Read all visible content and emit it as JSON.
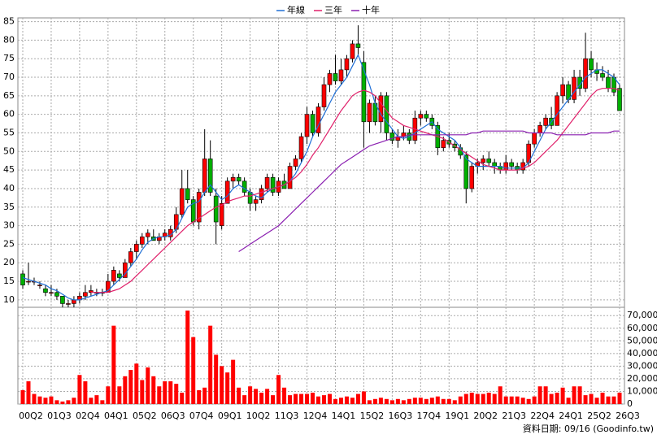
{
  "chart_data": {
    "type": "candlestick",
    "legend": {
      "position": "top"
    },
    "grid": true,
    "categories": [
      "00Q2",
      null,
      null,
      null,
      null,
      "01Q3",
      null,
      null,
      null,
      null,
      "02Q4",
      null,
      null,
      null,
      null,
      "04Q1",
      null,
      null,
      null,
      null,
      "05Q2",
      null,
      null,
      null,
      null,
      "06Q3",
      null,
      null,
      null,
      null,
      "07Q4",
      null,
      null,
      null,
      null,
      "09Q1",
      null,
      null,
      null,
      null,
      "10Q2",
      null,
      null,
      null,
      null,
      "11Q3",
      null,
      null,
      null,
      null,
      "12Q4",
      null,
      null,
      null,
      null,
      "14Q1",
      null,
      null,
      null,
      null,
      "15Q2",
      null,
      null,
      null,
      null,
      "16Q3",
      null,
      null,
      null,
      null,
      "17Q4",
      null,
      null,
      null,
      null,
      "19Q1",
      null,
      null,
      null,
      null,
      "20Q2",
      null,
      null,
      null,
      null,
      "21Q3",
      null,
      null,
      null,
      null,
      "22Q4",
      null,
      null,
      null,
      null,
      "24Q1",
      null,
      null,
      null,
      null,
      "25Q2",
      null,
      null,
      null,
      null,
      "26Q3"
    ],
    "up_color": "#ff0000",
    "down_color": "#00b000",
    "ylim": [
      8,
      86
    ],
    "yticks": [
      10,
      15,
      20,
      25,
      30,
      35,
      40,
      45,
      50,
      55,
      60,
      65,
      70,
      75,
      80,
      85
    ],
    "open": [
      17,
      15,
      15,
      14,
      13,
      12,
      12,
      11,
      9,
      9,
      10,
      11,
      12,
      12,
      12,
      12,
      15,
      17,
      16,
      20,
      23,
      25,
      27,
      27,
      26,
      27,
      27,
      29,
      33,
      40,
      37,
      31,
      39,
      48,
      38,
      30,
      36,
      42,
      43,
      42,
      39,
      36,
      37,
      40,
      43,
      39,
      42,
      40,
      46,
      48,
      54,
      60,
      55,
      62,
      68,
      71,
      69,
      72,
      75,
      79,
      74,
      58,
      63,
      58,
      65,
      55,
      53,
      54,
      55,
      53,
      59,
      60,
      59,
      57,
      51,
      53,
      52,
      51,
      49,
      40,
      46,
      47,
      48,
      47,
      46,
      45,
      47,
      46,
      45,
      47,
      52,
      55,
      57,
      59,
      57,
      65,
      68,
      64,
      70,
      67,
      75,
      72,
      71,
      70,
      70,
      67
    ],
    "high": [
      18,
      20,
      16,
      15,
      14,
      14,
      13,
      11,
      10,
      11,
      12,
      14,
      14,
      13,
      13,
      17,
      19,
      18,
      21,
      24,
      26,
      28,
      29,
      29,
      28,
      29,
      30,
      35,
      45,
      45,
      38,
      40,
      56,
      53,
      40,
      38,
      43,
      44,
      44,
      43,
      40,
      38,
      41,
      44,
      44,
      43,
      44,
      47,
      49,
      55,
      62,
      61,
      63,
      70,
      72,
      76,
      75,
      76,
      80,
      84,
      77,
      64,
      65,
      66,
      66,
      56,
      56,
      57,
      56,
      61,
      61,
      61,
      60,
      58,
      54,
      55,
      53,
      52,
      50,
      47,
      48,
      49,
      50,
      48,
      47,
      49,
      48,
      47,
      48,
      53,
      56,
      58,
      60,
      62,
      66,
      70,
      69,
      72,
      72,
      82,
      77,
      74,
      73,
      72,
      71,
      68
    ],
    "low": [
      13,
      14,
      14,
      13,
      11,
      11,
      10,
      8,
      8,
      8,
      9,
      10,
      11,
      11,
      11,
      12,
      14,
      15,
      16,
      19,
      21,
      24,
      25,
      26,
      25,
      26,
      26,
      28,
      32,
      36,
      30,
      29,
      38,
      38,
      25,
      29,
      36,
      40,
      41,
      38,
      34,
      34,
      36,
      39,
      38,
      38,
      40,
      40,
      45,
      47,
      52,
      54,
      54,
      61,
      66,
      68,
      68,
      70,
      74,
      76,
      51,
      55,
      57,
      55,
      53,
      52,
      51,
      53,
      52,
      52,
      57,
      58,
      56,
      49,
      50,
      51,
      50,
      48,
      36,
      39,
      44,
      45,
      46,
      44,
      44,
      44,
      45,
      44,
      44,
      46,
      51,
      54,
      56,
      56,
      57,
      63,
      63,
      63,
      65,
      66,
      70,
      69,
      69,
      66,
      65,
      61
    ],
    "close": [
      14,
      15,
      15,
      14,
      12,
      12,
      11,
      9,
      9,
      10,
      11,
      12,
      12.5,
      12,
      12,
      15,
      18,
      16,
      20,
      23,
      25,
      27,
      28,
      26,
      27,
      28,
      29,
      33,
      40,
      37,
      31,
      39,
      48,
      39,
      31,
      36,
      42,
      43,
      42,
      39,
      36,
      37,
      40,
      43,
      39,
      42,
      40,
      46,
      48,
      54,
      60,
      55,
      62,
      68,
      71,
      69,
      72,
      75,
      79,
      78,
      58,
      63,
      58,
      65,
      55,
      53,
      54,
      55,
      53,
      59,
      60,
      59,
      57,
      51,
      53,
      52,
      51,
      49,
      40,
      46,
      47,
      48,
      47,
      46,
      45,
      47,
      46,
      45,
      47,
      52,
      55,
      57,
      59,
      57,
      65,
      68,
      64,
      70,
      67,
      75,
      72,
      71,
      70,
      67,
      66,
      61
    ],
    "series": [
      {
        "name": "年線",
        "color": "#1f6fd6",
        "values": [
          16,
          15.5,
          15,
          14.5,
          14,
          13,
          12.5,
          11.5,
          10.5,
          10,
          10,
          10.5,
          11,
          11.5,
          12,
          12.5,
          14,
          15.5,
          17,
          19,
          21,
          23.5,
          25.5,
          26.5,
          27,
          27,
          27.5,
          29,
          32,
          35,
          36,
          36.5,
          39,
          41,
          39,
          37,
          38,
          40,
          41,
          40,
          39,
          38,
          37.5,
          39,
          40,
          40.5,
          41,
          42,
          44,
          47,
          50,
          54,
          57,
          60,
          63,
          66,
          68,
          70,
          73,
          76,
          72,
          68,
          63,
          60,
          58,
          56,
          54,
          53.5,
          54,
          55,
          56,
          57,
          58,
          56,
          55,
          54,
          53,
          51,
          48,
          47,
          46,
          46,
          46,
          46,
          46,
          45.5,
          45.5,
          45.5,
          45.5,
          47,
          50,
          53,
          56,
          58,
          60,
          62,
          64,
          66,
          68,
          70,
          71,
          72,
          72,
          71,
          70,
          68
        ]
      },
      {
        "name": "三年",
        "color": "#e0206a",
        "values": [
          null,
          null,
          null,
          null,
          null,
          null,
          null,
          null,
          null,
          null,
          null,
          null,
          12,
          12,
          12,
          12,
          12.5,
          13,
          14,
          15,
          16.5,
          18,
          19.5,
          21,
          22.5,
          24,
          25.5,
          27,
          28.5,
          30,
          31,
          32,
          33,
          34,
          35,
          35.5,
          36.5,
          37,
          37.5,
          38,
          38,
          38.5,
          39,
          39.5,
          40,
          40.5,
          41,
          42,
          43,
          44.5,
          46.5,
          49,
          51,
          53.5,
          56,
          58.5,
          61,
          63,
          65,
          66,
          66.5,
          66,
          65,
          63,
          61,
          59,
          58,
          57,
          56.5,
          56,
          55.5,
          55,
          54.5,
          54,
          53.5,
          52.5,
          51.5,
          50.5,
          49.5,
          48.5,
          47.5,
          46.5,
          46,
          45.5,
          45,
          45,
          45,
          45,
          45.5,
          46,
          47,
          48.5,
          50,
          51.5,
          53,
          55,
          57,
          59,
          61,
          63,
          65,
          66.5,
          67,
          67,
          67,
          66.5
        ]
      },
      {
        "name": "十年",
        "color": "#8a1fb0",
        "values": [
          null,
          null,
          null,
          null,
          null,
          null,
          null,
          null,
          null,
          null,
          null,
          null,
          null,
          null,
          null,
          null,
          null,
          null,
          null,
          null,
          null,
          null,
          null,
          null,
          null,
          null,
          null,
          null,
          null,
          null,
          null,
          null,
          null,
          null,
          null,
          null,
          null,
          null,
          23,
          24,
          25,
          26,
          27,
          28,
          29,
          30,
          31.5,
          33,
          34.5,
          36,
          37.5,
          39,
          40.5,
          42,
          43.5,
          45,
          46.5,
          47.5,
          48.5,
          49.5,
          50.5,
          51.5,
          52,
          52.5,
          53,
          53.5,
          54,
          54,
          54.5,
          54.5,
          54.5,
          54.5,
          54.5,
          54.5,
          54.5,
          54.5,
          54.5,
          54.5,
          54.5,
          55,
          55,
          55.5,
          55.5,
          55.5,
          55.5,
          55.5,
          55.5,
          55.5,
          55.5,
          55,
          55,
          55,
          55,
          55,
          54.5,
          54.5,
          54.5,
          54.5,
          54.5,
          54.5,
          55,
          55,
          55,
          55,
          55.5,
          55.5
        ]
      }
    ],
    "volume": {
      "color": "#ff0000",
      "ylim": [
        0,
        74000
      ],
      "yticks": [
        0,
        {
          "value": 10000,
          "label": "10,000"
        },
        {
          "value": 20000,
          "label": "20,000"
        },
        {
          "value": 30000,
          "label": "30,000"
        },
        {
          "value": 40000,
          "label": "40,000"
        },
        {
          "value": 50000,
          "label": "50,000"
        },
        {
          "value": 60000,
          "label": "60,000"
        },
        {
          "value": 70000,
          "label": "70,000"
        }
      ],
      "values": [
        11000,
        18000,
        8000,
        6000,
        5000,
        6000,
        3000,
        2000,
        3000,
        5000,
        23000,
        18000,
        5000,
        7000,
        3000,
        14000,
        62000,
        14000,
        22000,
        27000,
        32000,
        19000,
        29000,
        22000,
        14000,
        18000,
        18000,
        16000,
        9000,
        74000,
        53000,
        11000,
        13000,
        62000,
        39000,
        30000,
        25000,
        35000,
        13000,
        7000,
        14000,
        12000,
        9000,
        12000,
        7000,
        23000,
        13000,
        7000,
        8000,
        8000,
        8000,
        9000,
        6000,
        7000,
        8000,
        4000,
        5000,
        6000,
        5000,
        8000,
        10000,
        3000,
        4000,
        5000,
        4000,
        3000,
        4000,
        3000,
        4000,
        5000,
        5000,
        4000,
        5000,
        6000,
        4000,
        4000,
        3000,
        6000,
        8000,
        9000,
        8000,
        8000,
        9000,
        8000,
        14000,
        6000,
        6000,
        6000,
        5000,
        4000,
        6000,
        14000,
        14000,
        8000,
        9000,
        13000,
        5000,
        14000,
        14000,
        7000,
        8000,
        5000,
        9000,
        6000,
        6000,
        9000
      ]
    },
    "footnote": "資料日期: 09/16  (Goodinfo.tw)"
  }
}
